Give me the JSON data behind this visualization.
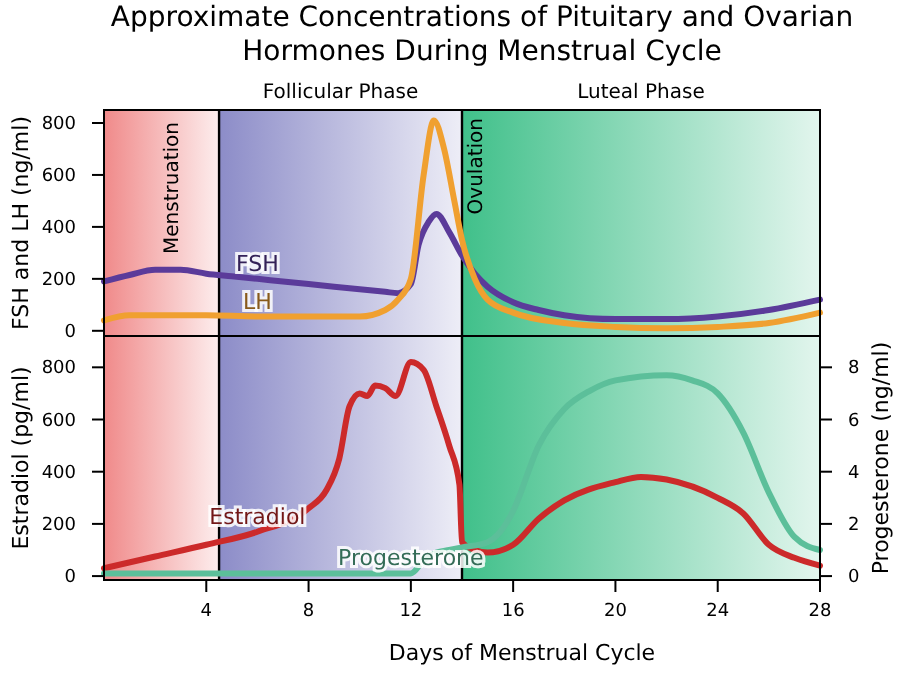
{
  "chart_data": [
    {
      "type": "line",
      "title": "Approximate Concentrations of Pituitary and Ovarian Hormones During Menstrual Cycle",
      "ylabel": "FSH and LH (ng/ml)",
      "xlim": [
        0,
        28
      ],
      "ylim": [
        -20,
        850
      ],
      "yticks": [
        0,
        200,
        400,
        600,
        800
      ],
      "tick_labels": "y",
      "grid": false,
      "bands": [
        {
          "axis": "x",
          "from": 0,
          "to": 4.5,
          "label": "Menstruation",
          "color": "#f08a8a"
        },
        {
          "axis": "x",
          "from": 4.5,
          "to": 14,
          "label": "Follicular Phase",
          "color": "#8c8cc8"
        },
        {
          "axis": "x",
          "from": 14,
          "to": 28,
          "label": "Luteal Phase",
          "color": "#40c08a"
        }
      ],
      "ref_lines": [
        {
          "axis": "x",
          "value": 4.5,
          "color": "#000000"
        },
        {
          "axis": "x",
          "value": 14,
          "label": "Ovulation",
          "color": "#000000"
        }
      ],
      "series": [
        {
          "name": "FSH",
          "color": "#5b3b9a",
          "x": [
            0,
            1,
            2,
            3,
            4,
            5,
            6,
            7,
            8,
            9,
            10,
            11,
            11.5,
            12,
            12.3,
            12.7,
            13,
            13.5,
            14,
            14.5,
            15,
            16,
            17,
            18,
            20,
            22,
            24,
            26,
            28
          ],
          "values": [
            190,
            215,
            235,
            235,
            220,
            210,
            200,
            190,
            180,
            170,
            160,
            150,
            145,
            180,
            330,
            420,
            450,
            380,
            290,
            220,
            170,
            110,
            80,
            60,
            45,
            45,
            55,
            80,
            120
          ]
        },
        {
          "name": "LH",
          "color": "#f0a030",
          "x": [
            0,
            1,
            2,
            4,
            6,
            8,
            10,
            11,
            11.5,
            12,
            12.5,
            12.9,
            13.3,
            13.7,
            14,
            14.5,
            15,
            16,
            18,
            20,
            22,
            24,
            26,
            28
          ],
          "values": [
            40,
            60,
            60,
            60,
            55,
            55,
            55,
            80,
            120,
            200,
            600,
            810,
            700,
            500,
            350,
            200,
            120,
            70,
            30,
            15,
            10,
            15,
            30,
            70
          ]
        }
      ]
    },
    {
      "type": "line",
      "xlabel": "Days of Menstrual Cycle",
      "ylabel": "Estradiol (pg/ml)",
      "y2label": "Progesterone (ng/ml)",
      "xlim": [
        0,
        28
      ],
      "xticks": [
        4,
        8,
        12,
        16,
        20,
        24,
        28
      ],
      "ylim": [
        -15,
        920
      ],
      "yticks": [
        0,
        200,
        400,
        600,
        800
      ],
      "y2lim": [
        -0.15,
        9.2
      ],
      "y2ticks": [
        0,
        2,
        4,
        6,
        8
      ],
      "grid": false,
      "bands": [
        {
          "axis": "x",
          "from": 0,
          "to": 4.5,
          "color": "#f08a8a"
        },
        {
          "axis": "x",
          "from": 4.5,
          "to": 14,
          "color": "#8c8cc8"
        },
        {
          "axis": "x",
          "from": 14,
          "to": 28,
          "color": "#40c08a"
        }
      ],
      "ref_lines": [
        {
          "axis": "x",
          "value": 4.5,
          "color": "#000000"
        },
        {
          "axis": "x",
          "value": 14,
          "color": "#000000"
        }
      ],
      "series": [
        {
          "name": "Estradiol",
          "color": "#cc2a2a",
          "x": [
            0,
            2,
            4,
            6,
            8,
            8.7,
            9.2,
            9.6,
            10,
            10.3,
            10.6,
            11,
            11.4,
            12,
            12.5,
            13,
            13.5,
            13.9,
            14,
            14.5,
            15,
            16,
            17,
            18,
            20,
            21,
            22,
            24,
            25,
            26,
            27,
            28
          ],
          "values": [
            30,
            75,
            120,
            170,
            260,
            330,
            450,
            650,
            700,
            690,
            730,
            720,
            690,
            820,
            790,
            650,
            500,
            350,
            130,
            100,
            90,
            120,
            220,
            290,
            360,
            380,
            370,
            300,
            240,
            120,
            70,
            40
          ]
        },
        {
          "name": "Progesterone",
          "color": "#5cbf9a",
          "axis": "y2",
          "x": [
            0,
            4,
            8,
            12,
            12.5,
            13,
            13.5,
            14,
            15,
            15.5,
            16,
            17,
            18,
            19,
            20,
            22,
            23,
            24,
            25,
            26,
            27,
            28
          ],
          "values": [
            0.1,
            0.1,
            0.1,
            0.1,
            0.6,
            0.9,
            1.0,
            1.1,
            1.3,
            1.7,
            2.5,
            5.0,
            6.4,
            7.1,
            7.5,
            7.7,
            7.5,
            7.0,
            5.5,
            3.2,
            1.5,
            1.0
          ]
        }
      ]
    }
  ]
}
